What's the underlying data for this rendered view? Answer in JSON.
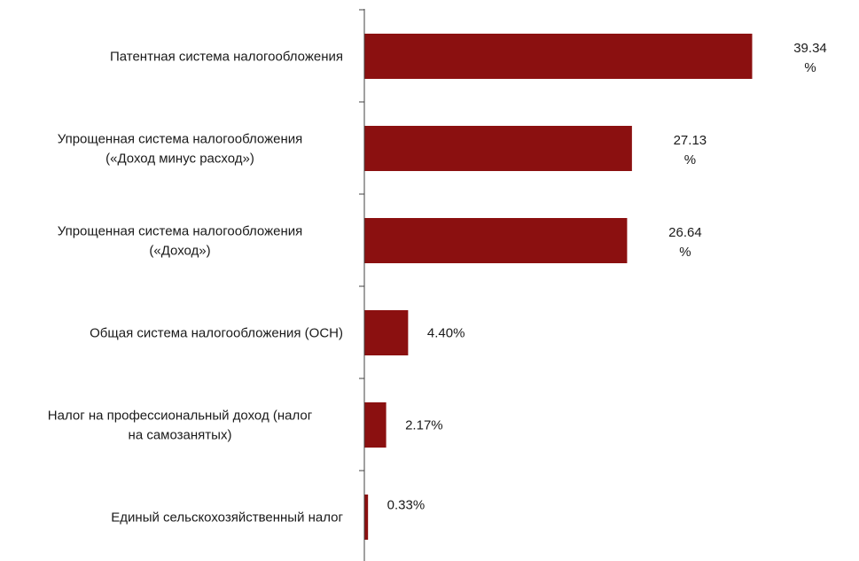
{
  "chart_data": {
    "type": "bar",
    "orientation": "horizontal",
    "categories": [
      [
        "Патентная система налогообложения"
      ],
      [
        "Упрощенная система налогообложения",
        "(«Доход минус расход»)"
      ],
      [
        "Упрощенная система налогообложения",
        "(«Доход»)"
      ],
      [
        "Общая система налогообложения (ОСН)"
      ],
      [
        "Налог на профессиональный доход (налог",
        "на самозанятых)"
      ],
      [
        "Единый сельскохозяйственный налог"
      ]
    ],
    "values": [
      39.34,
      27.13,
      26.64,
      4.4,
      2.17,
      0.33
    ],
    "value_labels": [
      [
        "39.34",
        "%"
      ],
      [
        "27.13",
        "%"
      ],
      [
        "26.64",
        "%"
      ],
      [
        "4.40%"
      ],
      [
        "2.17%"
      ],
      [
        "0.33%"
      ]
    ],
    "xlim": [
      0,
      40
    ],
    "bar_color": "#8b1010",
    "axis_color": "#404040",
    "grid": false,
    "legend": "none",
    "title": "",
    "xlabel": "",
    "ylabel": ""
  }
}
